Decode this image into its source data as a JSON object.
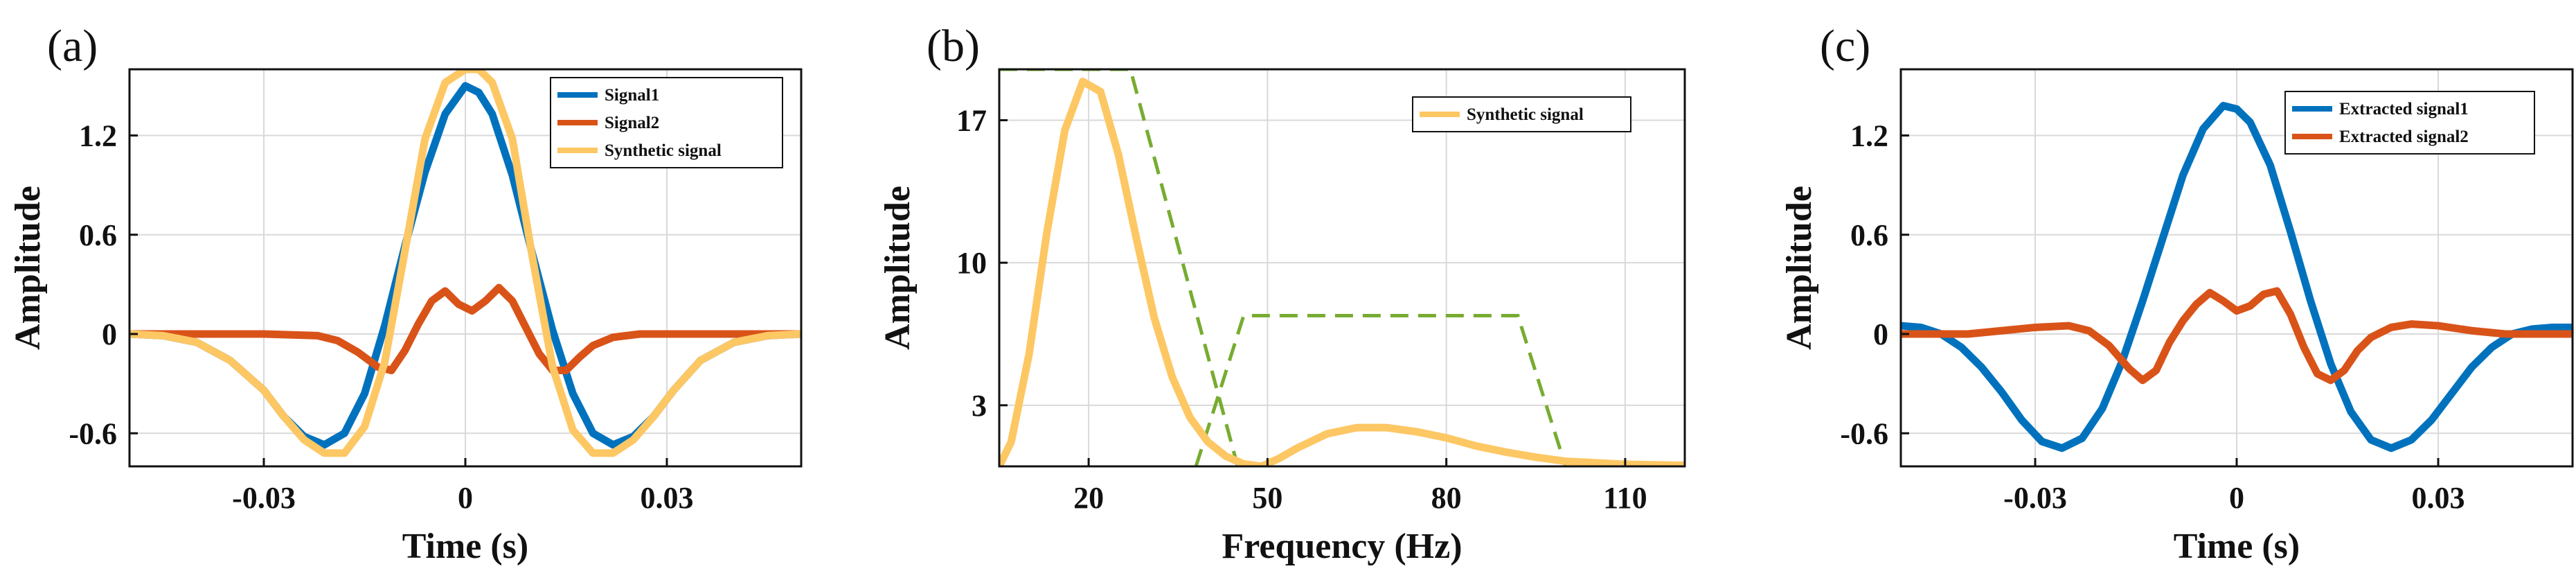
{
  "colors": {
    "signal1": "#0072BD",
    "signal2": "#D95319",
    "synthetic": "#FDC764",
    "filter": "#77AC30"
  },
  "chart_data": [
    {
      "panel": "(a)",
      "type": "line",
      "xlabel": "Time (s)",
      "ylabel": "Amplitude",
      "xlim": [
        -0.05,
        0.05
      ],
      "ylim": [
        -0.8,
        1.6
      ],
      "xticks": [
        -0.03,
        0,
        0.03
      ],
      "xtick_labels": [
        "-0.03",
        "0",
        "0.03"
      ],
      "yticks": [
        -0.6,
        0,
        0.6,
        1.2
      ],
      "ytick_labels": [
        "-0.6",
        "0",
        "0.6",
        "1.2"
      ],
      "grid": true,
      "legend": "top-right",
      "series": [
        {
          "name": "Signal1",
          "color": "#0072BD",
          "x": [
            -0.05,
            -0.045,
            -0.04,
            -0.035,
            -0.03,
            -0.027,
            -0.024,
            -0.021,
            -0.018,
            -0.015,
            -0.012,
            -0.009,
            -0.006,
            -0.003,
            0,
            0.002,
            0.004,
            0.007,
            0.01,
            0.013,
            0.016,
            0.019,
            0.022,
            0.025,
            0.028,
            0.031,
            0.035,
            0.04,
            0.045,
            0.05
          ],
          "y": [
            0,
            -0.01,
            -0.05,
            -0.16,
            -0.34,
            -0.5,
            -0.62,
            -0.67,
            -0.6,
            -0.36,
            0.05,
            0.53,
            0.98,
            1.33,
            1.5,
            1.46,
            1.33,
            0.96,
            0.48,
            0.02,
            -0.36,
            -0.6,
            -0.67,
            -0.62,
            -0.5,
            -0.34,
            -0.16,
            -0.05,
            -0.01,
            0
          ]
        },
        {
          "name": "Signal2",
          "color": "#D95319",
          "x": [
            -0.05,
            -0.03,
            -0.022,
            -0.019,
            -0.016,
            -0.013,
            -0.011,
            -0.009,
            -0.007,
            -0.005,
            -0.003,
            -0.001,
            0.001,
            0.003,
            0.005,
            0.007,
            0.009,
            0.011,
            0.013,
            0.015,
            0.017,
            0.019,
            0.022,
            0.026,
            0.03,
            0.05
          ],
          "y": [
            0,
            0,
            -0.01,
            -0.04,
            -0.11,
            -0.2,
            -0.22,
            -0.1,
            0.06,
            0.2,
            0.26,
            0.18,
            0.14,
            0.2,
            0.28,
            0.2,
            0.04,
            -0.12,
            -0.22,
            -0.22,
            -0.14,
            -0.07,
            -0.02,
            0,
            0,
            0
          ]
        },
        {
          "name": "Synthetic signal",
          "color": "#FDC764",
          "x": [
            -0.05,
            -0.045,
            -0.04,
            -0.035,
            -0.03,
            -0.027,
            -0.024,
            -0.021,
            -0.018,
            -0.015,
            -0.012,
            -0.009,
            -0.006,
            -0.003,
            0,
            0.002,
            0.004,
            0.007,
            0.01,
            0.013,
            0.016,
            0.019,
            0.022,
            0.025,
            0.028,
            0.031,
            0.035,
            0.04,
            0.045,
            0.05
          ],
          "y": [
            0,
            -0.01,
            -0.05,
            -0.16,
            -0.34,
            -0.5,
            -0.64,
            -0.72,
            -0.72,
            -0.56,
            -0.17,
            0.5,
            1.18,
            1.52,
            1.6,
            1.6,
            1.52,
            1.18,
            0.46,
            -0.2,
            -0.58,
            -0.72,
            -0.72,
            -0.64,
            -0.5,
            -0.34,
            -0.16,
            -0.05,
            -0.01,
            0
          ]
        }
      ]
    },
    {
      "panel": "(b)",
      "type": "line",
      "xlabel": "Frequency (Hz)",
      "ylabel": "Amplitude",
      "xlim": [
        5,
        120
      ],
      "ylim": [
        0,
        19.5
      ],
      "xticks": [
        20,
        50,
        80,
        110
      ],
      "xtick_labels": [
        "20",
        "50",
        "80",
        "110"
      ],
      "yticks": [
        3,
        10,
        17
      ],
      "ytick_labels": [
        "3",
        "10",
        "17"
      ],
      "grid": true,
      "legend": "top-right",
      "series": [
        {
          "name": "Synthetic signal",
          "color": "#FDC764",
          "x": [
            5,
            7,
            10,
            13,
            16,
            19,
            22,
            25,
            28,
            31,
            34,
            37,
            40,
            43,
            46,
            49,
            52,
            55,
            60,
            65,
            70,
            75,
            80,
            85,
            90,
            95,
            100,
            110,
            120
          ],
          "y": [
            0,
            1.2,
            5.5,
            11.5,
            16.5,
            18.9,
            18.4,
            15.3,
            11.2,
            7.3,
            4.4,
            2.4,
            1.2,
            0.5,
            0.12,
            0,
            0.4,
            0.9,
            1.6,
            1.9,
            1.9,
            1.7,
            1.4,
            1.0,
            0.7,
            0.45,
            0.25,
            0.1,
            0.05
          ]
        }
      ],
      "filter_windows": [
        {
          "style": "dashed",
          "color": "#77AC30",
          "x": [
            5,
            27,
            45
          ],
          "y": [
            19.5,
            19.5,
            0
          ]
        },
        {
          "style": "dashed",
          "color": "#77AC30",
          "x": [
            38,
            46,
            92,
            100
          ],
          "y": [
            0,
            7.4,
            7.4,
            0
          ]
        }
      ]
    },
    {
      "panel": "(c)",
      "type": "line",
      "xlabel": "Time (s)",
      "ylabel": "Amplitude",
      "xlim": [
        -0.05,
        0.05
      ],
      "ylim": [
        -0.8,
        1.6
      ],
      "xticks": [
        -0.03,
        0,
        0.03
      ],
      "xtick_labels": [
        "-0.03",
        "0",
        "0.03"
      ],
      "yticks": [
        -0.6,
        0,
        0.6,
        1.2
      ],
      "ytick_labels": [
        "-0.6",
        "0",
        "0.6",
        "1.2"
      ],
      "grid": true,
      "legend": "top-right",
      "series": [
        {
          "name": "Extracted signal1",
          "color": "#0072BD",
          "x": [
            -0.05,
            -0.047,
            -0.044,
            -0.041,
            -0.038,
            -0.035,
            -0.032,
            -0.029,
            -0.026,
            -0.023,
            -0.02,
            -0.017,
            -0.014,
            -0.011,
            -0.008,
            -0.005,
            -0.002,
            0,
            0.002,
            0.005,
            0.008,
            0.011,
            0.014,
            0.017,
            0.02,
            0.023,
            0.026,
            0.029,
            0.032,
            0.035,
            0.038,
            0.041,
            0.044,
            0.047,
            0.05
          ],
          "y": [
            0.05,
            0.04,
            0,
            -0.08,
            -0.2,
            -0.35,
            -0.52,
            -0.65,
            -0.69,
            -0.63,
            -0.45,
            -0.16,
            0.2,
            0.58,
            0.96,
            1.24,
            1.38,
            1.36,
            1.28,
            1.02,
            0.62,
            0.2,
            -0.18,
            -0.47,
            -0.64,
            -0.69,
            -0.64,
            -0.52,
            -0.36,
            -0.2,
            -0.08,
            0,
            0.03,
            0.04,
            0.04
          ]
        },
        {
          "name": "Extracted signal2",
          "color": "#D95319",
          "x": [
            -0.05,
            -0.04,
            -0.035,
            -0.03,
            -0.025,
            -0.022,
            -0.019,
            -0.016,
            -0.014,
            -0.012,
            -0.01,
            -0.008,
            -0.006,
            -0.004,
            -0.002,
            0,
            0.002,
            0.004,
            0.006,
            0.008,
            0.01,
            0.012,
            0.014,
            0.016,
            0.018,
            0.02,
            0.023,
            0.026,
            0.03,
            0.035,
            0.04,
            0.045,
            0.05
          ],
          "y": [
            0,
            0,
            0.02,
            0.04,
            0.05,
            0.02,
            -0.07,
            -0.21,
            -0.28,
            -0.22,
            -0.05,
            0.08,
            0.18,
            0.25,
            0.2,
            0.14,
            0.17,
            0.24,
            0.26,
            0.12,
            -0.08,
            -0.24,
            -0.28,
            -0.22,
            -0.1,
            -0.02,
            0.04,
            0.06,
            0.05,
            0.02,
            0,
            0,
            0
          ]
        }
      ]
    }
  ]
}
